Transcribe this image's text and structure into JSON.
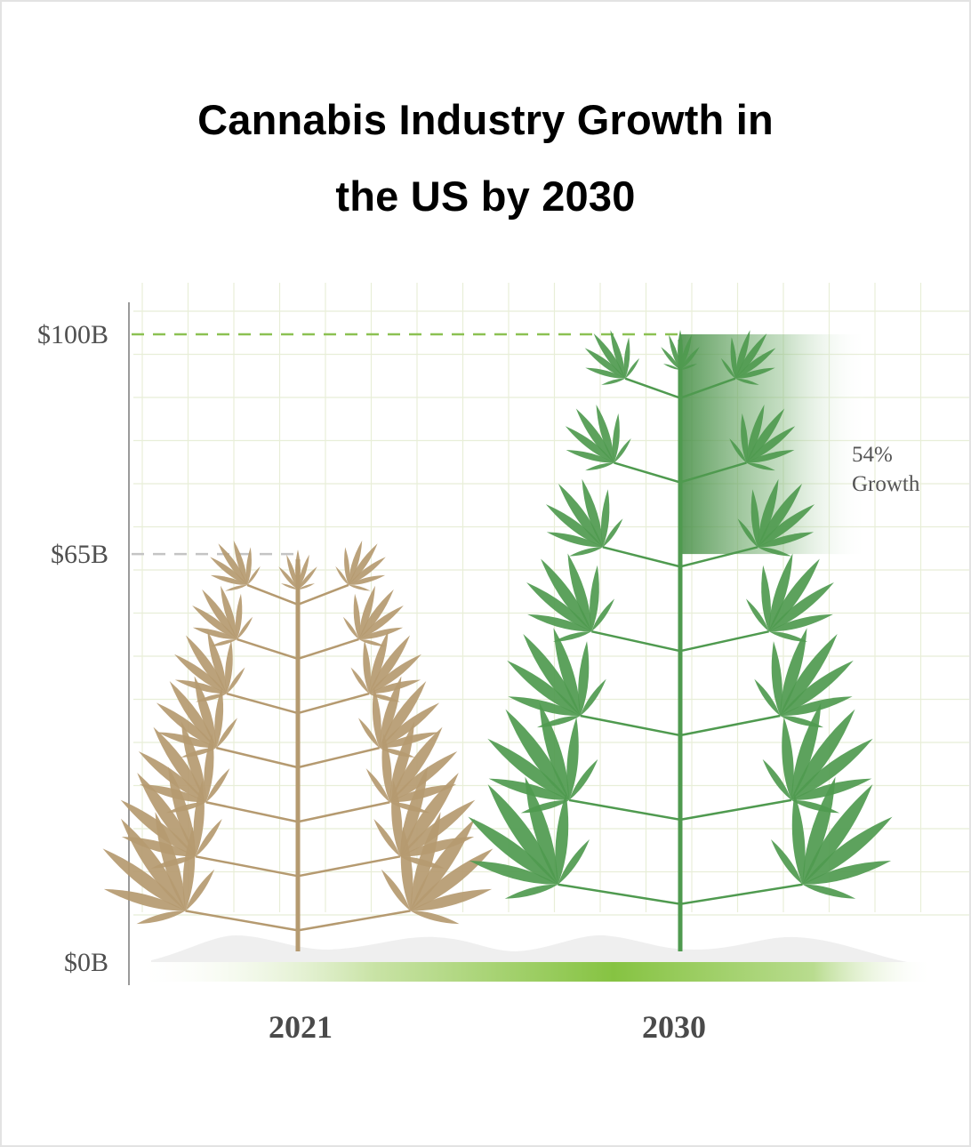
{
  "colors": {
    "grid": "#e8eed8",
    "accent_green": "#7fbf3a",
    "plant_2021": "#b59a70",
    "plant_2030": "#4f9a4f",
    "ref_gray": "#c8c8c8"
  },
  "chart_data": {
    "type": "bar",
    "title": "Cannabis Industry Growth in the US by 2030",
    "title_lines": [
      "Cannabis Industry Growth in",
      "the US by 2030"
    ],
    "categories": [
      "2021",
      "2030"
    ],
    "values": [
      65,
      100
    ],
    "unit": "$B",
    "ylim": [
      0,
      100
    ],
    "yticks": [
      {
        "value": 0,
        "label": "$0B"
      },
      {
        "value": 65,
        "label": "$65B"
      },
      {
        "value": 100,
        "label": "$100B"
      }
    ],
    "annotation": {
      "line1": "54%",
      "line2": "Growth"
    },
    "grid": true,
    "legend": "none"
  }
}
